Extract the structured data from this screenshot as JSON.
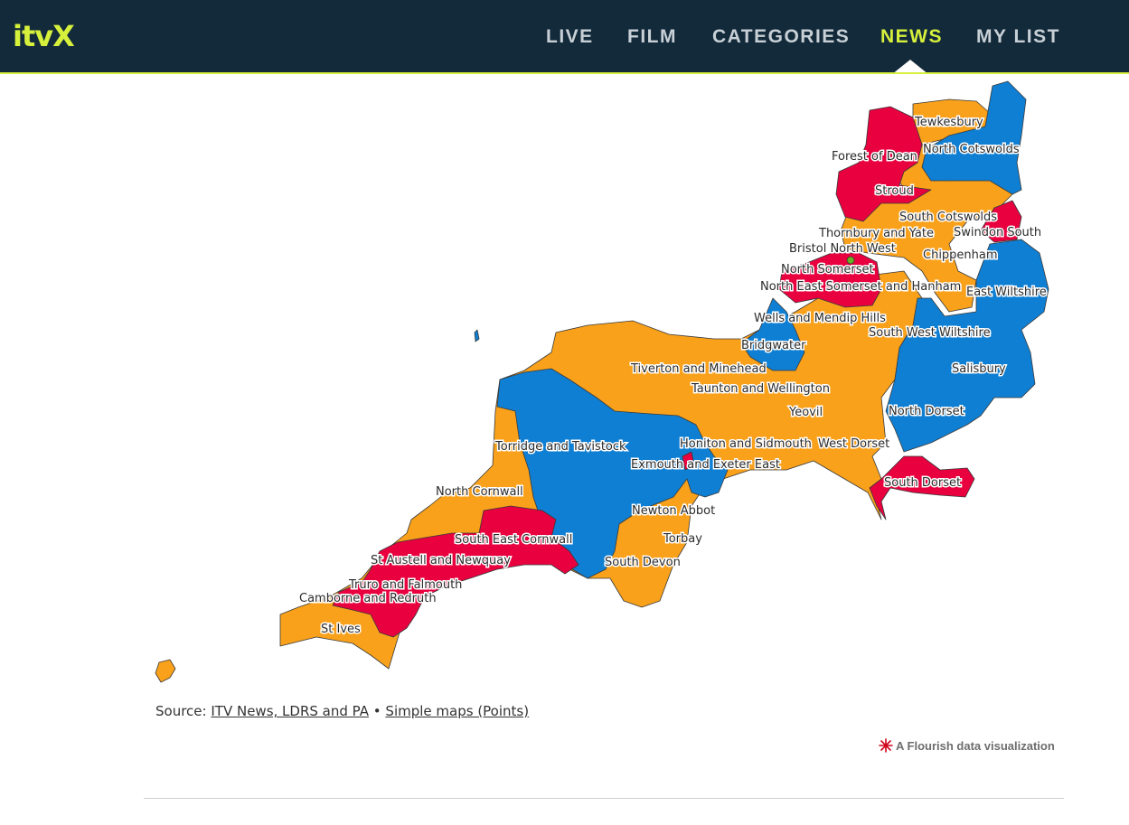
{
  "header": {
    "logo": "itvX",
    "nav": [
      {
        "id": "live",
        "label": "LIVE"
      },
      {
        "id": "film",
        "label": "FILM"
      },
      {
        "id": "categories",
        "label": "CATEGORIES"
      },
      {
        "id": "news",
        "label": "NEWS",
        "active": true
      },
      {
        "id": "mylist",
        "label": "MY LIST"
      }
    ]
  },
  "colors": {
    "header_bg": "#132a3b",
    "accent": "#d6f03c",
    "conservative_blue": "#0f7fd3",
    "labour_red": "#e8003f",
    "libdem_orange": "#f9a11b",
    "green": "#6ab023"
  },
  "map": {
    "constituencies": [
      {
        "name": "Tewkesbury",
        "color": "orange"
      },
      {
        "name": "North Cotswolds",
        "color": "blue"
      },
      {
        "name": "Forest of Dean",
        "color": "red"
      },
      {
        "name": "Stroud",
        "color": "red"
      },
      {
        "name": "South Cotswolds",
        "color": "orange"
      },
      {
        "name": "Thornbury and Yate",
        "color": "orange"
      },
      {
        "name": "Swindon South",
        "color": "red"
      },
      {
        "name": "Bristol North West",
        "color": "red"
      },
      {
        "name": "Chippenham",
        "color": "orange"
      },
      {
        "name": "North Somerset",
        "color": "red"
      },
      {
        "name": "North East Somerset and Hanham",
        "color": "red"
      },
      {
        "name": "East Wiltshire",
        "color": "blue"
      },
      {
        "name": "Wells and Mendip Hills",
        "color": "orange"
      },
      {
        "name": "South West Wiltshire",
        "color": "blue"
      },
      {
        "name": "Bridgwater",
        "color": "blue"
      },
      {
        "name": "Tiverton and Minehead",
        "color": "orange"
      },
      {
        "name": "Salisbury",
        "color": "blue"
      },
      {
        "name": "Taunton and Wellington",
        "color": "orange"
      },
      {
        "name": "Yeovil",
        "color": "orange"
      },
      {
        "name": "North Dorset",
        "color": "blue"
      },
      {
        "name": "Torridge and Tavistock",
        "color": "blue"
      },
      {
        "name": "Honiton and Sidmouth",
        "color": "orange"
      },
      {
        "name": "West Dorset",
        "color": "orange"
      },
      {
        "name": "Exmouth and Exeter East",
        "color": "blue"
      },
      {
        "name": "South Dorset",
        "color": "red"
      },
      {
        "name": "North Cornwall",
        "color": "orange"
      },
      {
        "name": "Newton Abbot",
        "color": "orange"
      },
      {
        "name": "Torbay",
        "color": "orange"
      },
      {
        "name": "South East Cornwall",
        "color": "red"
      },
      {
        "name": "St Austell and Newquay",
        "color": "red"
      },
      {
        "name": "South Devon",
        "color": "orange"
      },
      {
        "name": "Truro and Falmouth",
        "color": "red"
      },
      {
        "name": "Camborne and Redruth",
        "color": "red"
      },
      {
        "name": "St Ives",
        "color": "orange"
      }
    ]
  },
  "source": {
    "prefix": "Source:",
    "link1": "ITV News, LDRS and PA",
    "separator": "•",
    "link2": "Simple maps (Points)"
  },
  "flourish": {
    "label": "A Flourish data visualization"
  }
}
